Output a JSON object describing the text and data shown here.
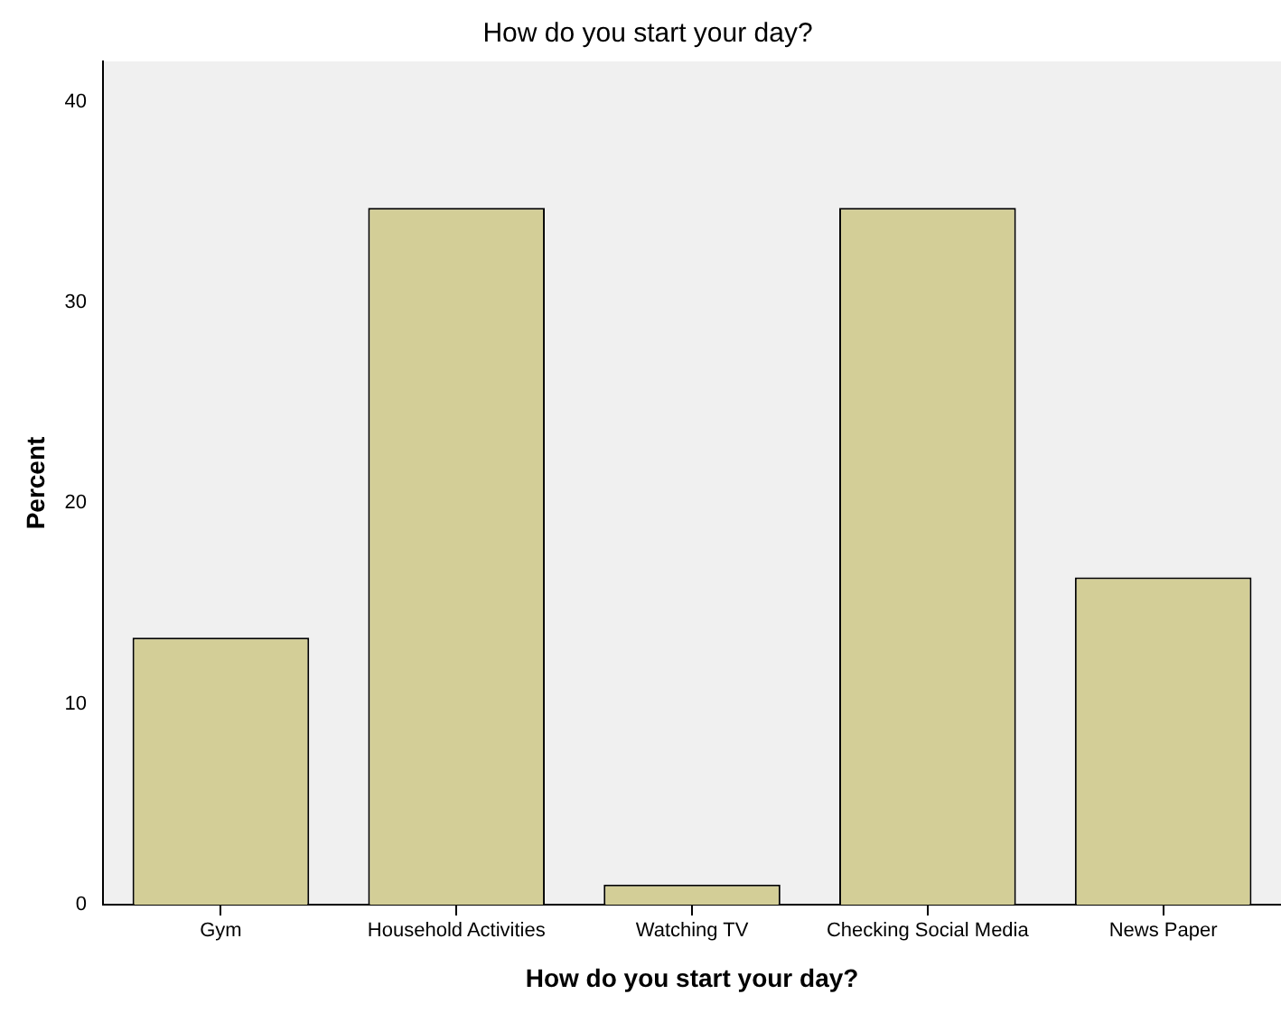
{
  "chart_data": {
    "type": "bar",
    "title": "How do you start your day?",
    "xlabel": "How do you start your day?",
    "ylabel": "Percent",
    "categories": [
      "Gym",
      "Household Activities",
      "Watching TV",
      "Checking Social Media",
      "News Paper"
    ],
    "values": [
      13.3,
      34.7,
      1.0,
      34.7,
      16.3
    ],
    "color": "#d3ce97",
    "ylim": [
      0,
      42
    ],
    "yticks": [
      0,
      10,
      20,
      30,
      40
    ],
    "grid": false,
    "legend": false
  }
}
